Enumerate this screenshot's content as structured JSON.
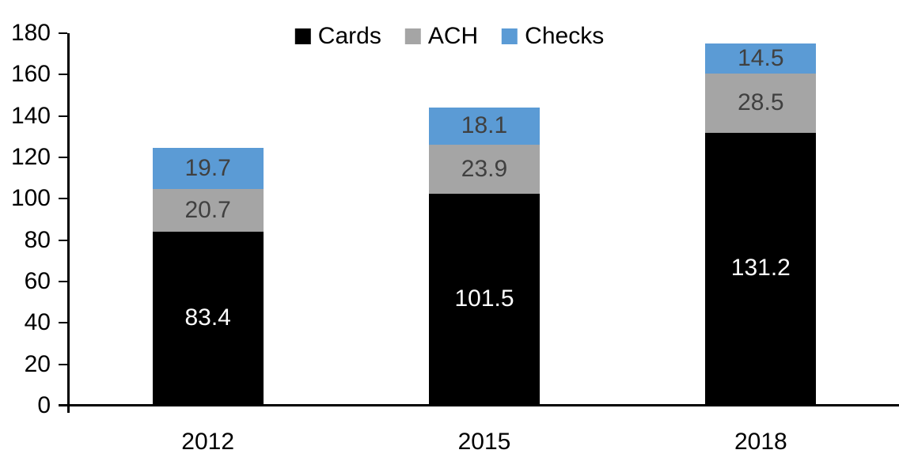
{
  "chart_data": {
    "type": "bar",
    "stacked": true,
    "title": "",
    "xlabel": "",
    "ylabel": "",
    "categories": [
      "2012",
      "2015",
      "2018"
    ],
    "series": [
      {
        "name": "Cards",
        "color": "#000000",
        "label_color": "#ffffff",
        "values": [
          83.4,
          101.5,
          131.2
        ]
      },
      {
        "name": "ACH",
        "color": "#a5a5a5",
        "label_color": "#404040",
        "values": [
          20.7,
          23.9,
          28.5
        ]
      },
      {
        "name": "Checks",
        "color": "#5b9bd5",
        "label_color": "#404040",
        "values": [
          19.7,
          18.1,
          14.5
        ]
      }
    ],
    "totals": [
      123.8,
      143.5,
      174.2
    ],
    "ylim": [
      0,
      180
    ],
    "yticks": [
      0,
      20,
      40,
      60,
      80,
      100,
      120,
      140,
      160,
      180
    ],
    "grid": false,
    "legend_position": "top-center",
    "legend_entries": [
      "Cards",
      "ACH",
      "Checks"
    ],
    "axis_color": "#000000",
    "background_color": "#ffffff"
  }
}
